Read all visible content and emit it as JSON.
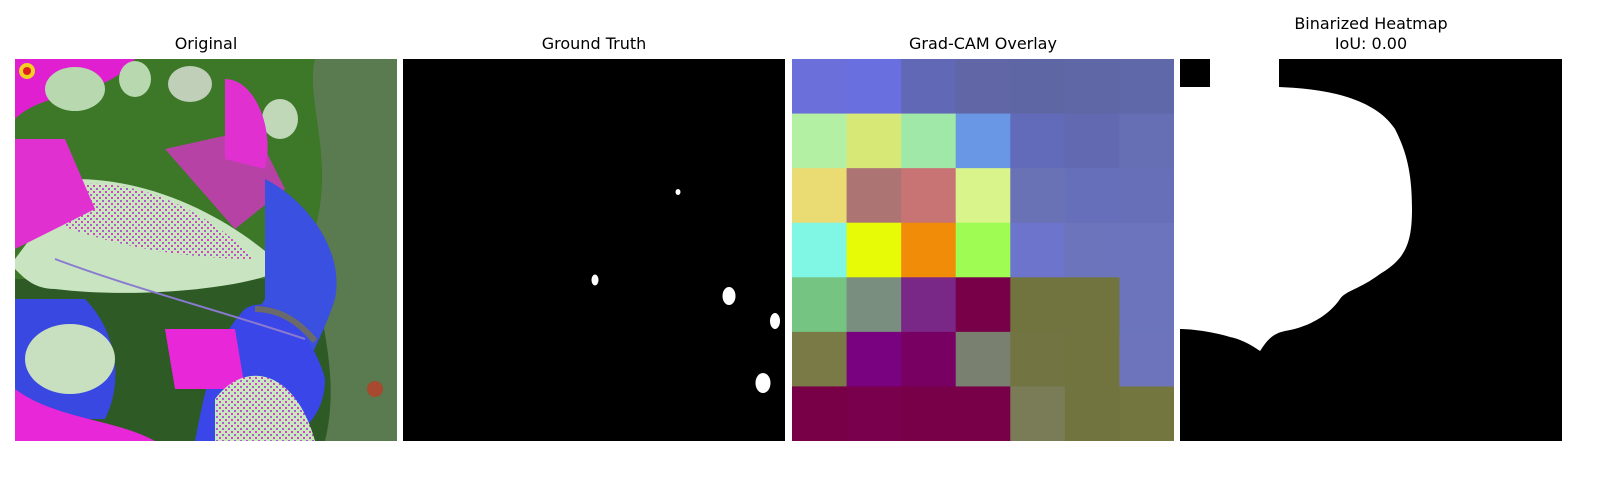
{
  "panels": [
    {
      "title": "Original",
      "subtitle": ""
    },
    {
      "title": "Ground Truth",
      "subtitle": ""
    },
    {
      "title": "Grad-CAM Overlay",
      "subtitle": ""
    },
    {
      "title": "Binarized Heatmap",
      "subtitle": "IoU: 0.00"
    }
  ],
  "gradcam_grid": [
    [
      "#6a6fda",
      "#6a6fdf",
      "#6168b6",
      "#6066a6",
      "#5f66a4",
      "#5f67a6",
      "#5f68a8"
    ],
    [
      "#b4f0a4",
      "#d8e876",
      "#a0e8a8",
      "#6a96e6",
      "#626aba",
      "#6269b0",
      "#666eb4"
    ],
    [
      "#eadc72",
      "#ac7574",
      "#c97474",
      "#d8f48a",
      "#6a72b6",
      "#666fb9",
      "#666fb8"
    ],
    [
      "#80f6e4",
      "#e8fb06",
      "#f08c08",
      "#9efc52",
      "#6c74cc",
      "#6c74bc",
      "#6b74bc"
    ],
    [
      "#76c482",
      "#7a8e80",
      "#7a2888",
      "#780048",
      "#727440",
      "#727440",
      "#6c74bc"
    ],
    [
      "#7a7a46",
      "#780280",
      "#780062",
      "#7a8070",
      "#727442",
      "#727440",
      "#6e74bc"
    ],
    [
      "#780046",
      "#78004c",
      "#780048",
      "#780048",
      "#7a7c58",
      "#727440",
      "#747640"
    ]
  ],
  "colors": {
    "mask_background": "#000000",
    "mask_foreground": "#ffffff"
  }
}
